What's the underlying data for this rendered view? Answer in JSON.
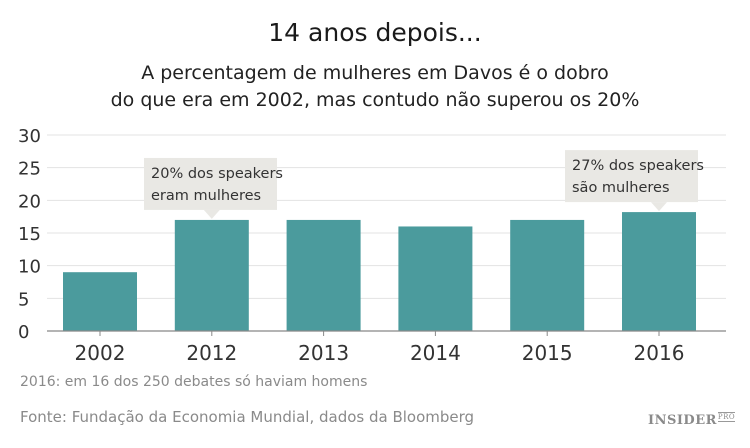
{
  "title": "14 anos depois...",
  "subtitle_line1": "A percentagem de mulheres em Davos é o dobro",
  "subtitle_line2": "do que era em 2002, mas contudo não superou os 20%",
  "footnote": "2016: em 16 dos 250 debates só haviam homens",
  "source": "Fonte: Fundação da Economia Mundial, dados da Bloomberg",
  "logo": {
    "main": "INSIDER",
    "sub": "PRO"
  },
  "colors": {
    "bar": "#4b9b9d",
    "callout": "#e9e8e4",
    "grid": "#e3e3e3"
  },
  "chart_data": {
    "type": "bar",
    "categories": [
      "2002",
      "2012",
      "2013",
      "2014",
      "2015",
      "2016"
    ],
    "values": [
      9,
      17,
      17,
      16,
      17,
      18.2
    ],
    "ylim": [
      0,
      30
    ],
    "yticks": [
      0,
      5,
      10,
      15,
      20,
      25,
      30
    ],
    "grid": true,
    "annotations": [
      {
        "category": "2012",
        "lines": [
          "20% dos speakers",
          "eram mulheres"
        ]
      },
      {
        "category": "2016",
        "lines": [
          "27% dos speakers",
          "são mulheres"
        ]
      }
    ]
  }
}
